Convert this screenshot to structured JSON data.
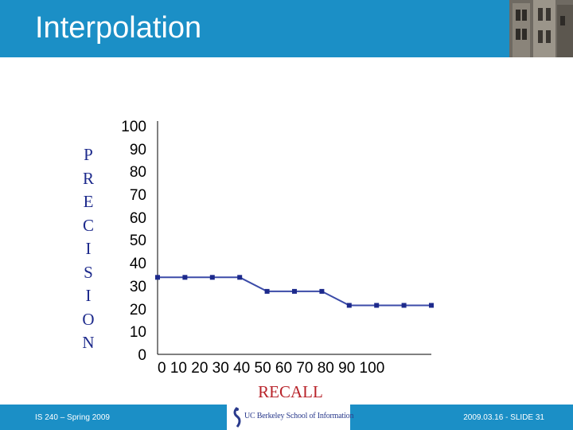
{
  "header": {
    "title": "Interpolation",
    "accent_color": "#1b8fc6"
  },
  "chart_data": {
    "type": "line",
    "xlabel": "RECALL",
    "ylabel": [
      "P",
      "R",
      "E",
      "C",
      "I",
      "S",
      "I",
      "O",
      "N"
    ],
    "xlim": [
      0,
      100
    ],
    "ylim": [
      0,
      100
    ],
    "x_ticks": "0 10 20 30 40 50 60 70 80 90 100",
    "y_ticks": [
      "100",
      "90",
      "80",
      "70",
      "60",
      "50",
      "40",
      "30",
      "20",
      "10",
      "0"
    ],
    "series": [
      {
        "x": [
          0,
          10,
          20,
          30,
          40,
          50,
          60,
          70,
          80,
          90,
          100
        ],
        "y": [
          33,
          33,
          33,
          33,
          27,
          27,
          27,
          21,
          21,
          21,
          21
        ]
      }
    ],
    "line_color": "#3b4ba8",
    "marker_color": "#1d2a8c",
    "xlabel_color": "#b8232a",
    "ylabel_color": "#1d2a8c"
  },
  "footer": {
    "left": "IS 240 – Spring 2009",
    "right": "2009.03.16 - SLIDE 31",
    "logo_text": "UC Berkeley School of Information"
  }
}
